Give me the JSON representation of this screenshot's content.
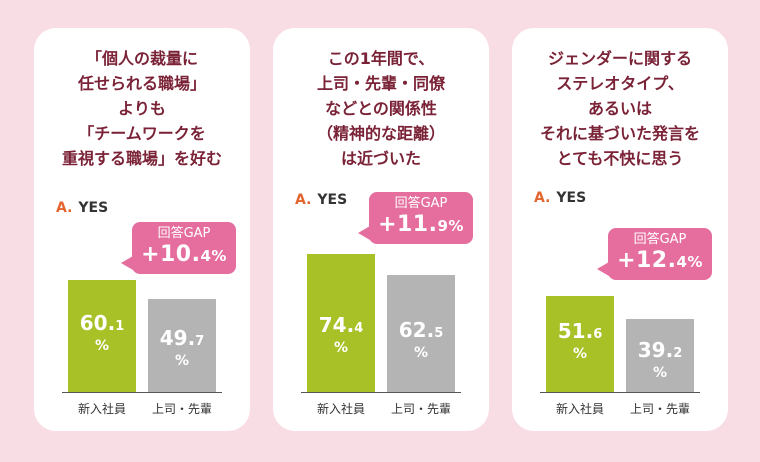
{
  "panels": [
    {
      "title_lines": [
        "「個人の裁量に",
        "任せられる職場」",
        "よりも",
        "「チームワークを",
        "重視する職場」を好む"
      ],
      "yes_prefix": "A.",
      "yes_label": "YES",
      "gap_label": "回答GAP",
      "gap_main": "+10.",
      "gap_dec": "4%",
      "bars": [
        {
          "category": "新入社員",
          "int": "60.",
          "dec": "1",
          "pct": "%"
        },
        {
          "category": "上司・先輩",
          "int": "49.",
          "dec": "7",
          "pct": "%"
        }
      ]
    },
    {
      "title_lines": [
        "この1年間で、",
        "上司・先輩・同僚",
        "などとの関係性",
        "（精神的な距離）",
        "は近づいた"
      ],
      "yes_prefix": "A.",
      "yes_label": "YES",
      "gap_label": "回答GAP",
      "gap_main": "+11.",
      "gap_dec": "9%",
      "bars": [
        {
          "category": "新入社員",
          "int": "74.",
          "dec": "4",
          "pct": "%"
        },
        {
          "category": "上司・先輩",
          "int": "62.",
          "dec": "5",
          "pct": "%"
        }
      ]
    },
    {
      "title_lines": [
        "ジェンダーに関する",
        "ステレオタイプ、",
        "あるいは",
        "それに基づいた発言を",
        "とても不快に思う"
      ],
      "yes_prefix": "A.",
      "yes_label": "YES",
      "gap_label": "回答GAP",
      "gap_main": "+12.",
      "gap_dec": "4%",
      "bars": [
        {
          "category": "新入社員",
          "int": "51.",
          "dec": "6",
          "pct": "%"
        },
        {
          "category": "上司・先輩",
          "int": "39.",
          "dec": "2",
          "pct": "%"
        }
      ]
    }
  ],
  "colors": {
    "newcomer": "#a7c127",
    "senior": "#b4b4b4",
    "gap": "#e56e9e",
    "title": "#7a2236",
    "accent": "#e4642d"
  },
  "chart_data": [
    {
      "type": "bar",
      "categories": [
        "新入社員",
        "上司・先輩"
      ],
      "values": [
        60.1,
        49.7
      ],
      "gap": 10.4,
      "unit": "%"
    },
    {
      "type": "bar",
      "categories": [
        "新入社員",
        "上司・先輩"
      ],
      "values": [
        74.4,
        62.5
      ],
      "gap": 11.9,
      "unit": "%"
    },
    {
      "type": "bar",
      "categories": [
        "新入社員",
        "上司・先輩"
      ],
      "values": [
        51.6,
        39.2
      ],
      "gap": 12.4,
      "unit": "%"
    }
  ]
}
